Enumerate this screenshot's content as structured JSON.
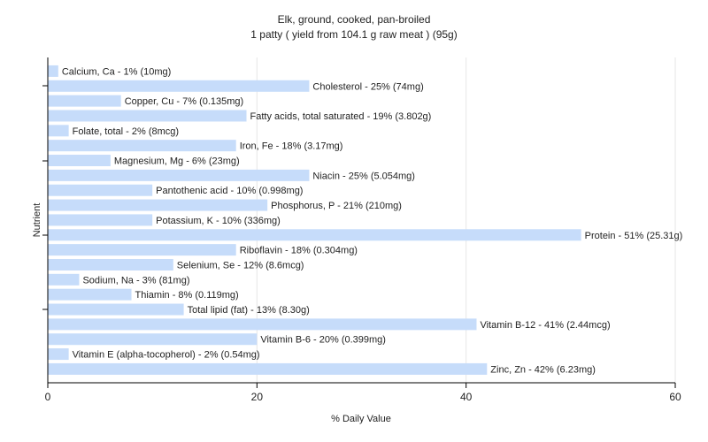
{
  "chart_data": {
    "type": "bar",
    "orientation": "horizontal",
    "title": "Elk, ground, cooked, pan-broiled",
    "subtitle": "1 patty ( yield from 104.1 g raw meat ) (95g)",
    "xlabel": "% Daily Value",
    "ylabel": "Nutrient",
    "xlim": [
      0,
      60
    ],
    "xticks": [
      "0",
      "20",
      "40",
      "60"
    ],
    "grid": true,
    "bar_color": "#c6dcfa",
    "categories": [
      "Calcium, Ca",
      "Cholesterol",
      "Copper, Cu",
      "Fatty acids, total saturated",
      "Folate, total",
      "Iron, Fe",
      "Magnesium, Mg",
      "Niacin",
      "Pantothenic acid",
      "Phosphorus, P",
      "Potassium, K",
      "Protein",
      "Riboflavin",
      "Selenium, Se",
      "Sodium, Na",
      "Thiamin",
      "Total lipid (fat)",
      "Vitamin B-12",
      "Vitamin B-6",
      "Vitamin E (alpha-tocopherol)",
      "Zinc, Zn"
    ],
    "values": [
      1,
      25,
      7,
      19,
      2,
      18,
      6,
      25,
      10,
      21,
      10,
      51,
      18,
      12,
      3,
      8,
      13,
      41,
      20,
      2,
      42
    ],
    "labels": [
      "Calcium, Ca - 1% (10mg)",
      "Cholesterol - 25% (74mg)",
      "Copper, Cu - 7% (0.135mg)",
      "Fatty acids, total saturated - 19% (3.802g)",
      "Folate, total - 2% (8mcg)",
      "Iron, Fe - 18% (3.17mg)",
      "Magnesium, Mg - 6% (23mg)",
      "Niacin - 25% (5.054mg)",
      "Pantothenic acid - 10% (0.998mg)",
      "Phosphorus, P - 21% (210mg)",
      "Potassium, K - 10% (336mg)",
      "Protein - 51% (25.31g)",
      "Riboflavin - 18% (0.304mg)",
      "Selenium, Se - 12% (8.6mcg)",
      "Sodium, Na - 3% (81mg)",
      "Thiamin - 8% (0.119mg)",
      "Total lipid (fat) - 13% (8.30g)",
      "Vitamin B-12 - 41% (2.44mcg)",
      "Vitamin B-6 - 20% (0.399mg)",
      "Vitamin E (alpha-tocopherol) - 2% (0.54mg)",
      "Zinc, Zn - 42% (6.23mg)"
    ]
  }
}
